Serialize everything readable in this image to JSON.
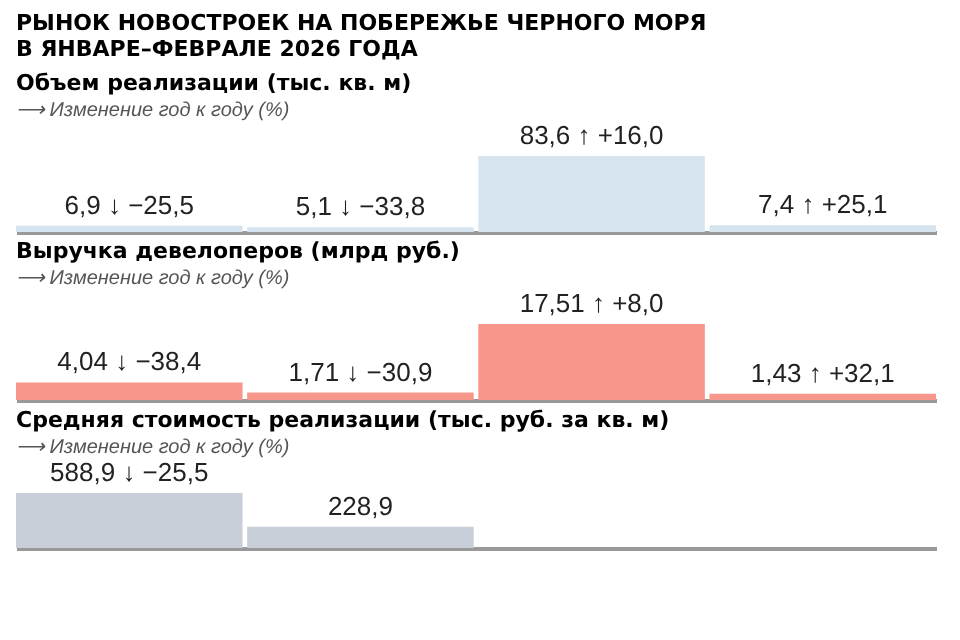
{
  "chart_data": [
    {
      "type": "bar",
      "title": "Объем реализации (тыс. кв. м)",
      "subtitle": "⟶ Изменение год к году (%)",
      "annotations": [
        "РЫНОК НОВОСТРОЕК НА ПОБЕРЕЖЬЕ ЧЕРНОГО МОРЯ",
        "В ЯНВАРЕ–ФЕВРАЛЕ 2026 ГОДА"
      ],
      "categories": [
        null,
        null,
        null,
        null
      ],
      "values": [
        6.9,
        5.1,
        83.6,
        7.4
      ],
      "color": "#d6e4f0",
      "ylim": [
        0,
        83.6
      ],
      "tick_labels": false,
      "value_labels": [
        "6,9 ↓ −25,5",
        "5,1 ↓ −33,8",
        "83,6 ↑ +16,0",
        "7,4 ↑ +25,1"
      ]
    },
    {
      "type": "bar",
      "title": "Выручка девелоперов (млрд руб.)",
      "subtitle": "⟶ Изменение год к году (%)",
      "categories": [
        null,
        null,
        null,
        null
      ],
      "values": [
        4.04,
        1.71,
        17.51,
        1.43
      ],
      "color": "#f7968a",
      "ylim": [
        0,
        17.51
      ],
      "tick_labels": false,
      "value_labels": [
        "4,04 ↓ −38,4",
        "1,71 ↓ −30,9",
        "17,51 ↑ +8,0",
        "1,43 ↑ +32,1"
      ]
    },
    {
      "type": "bar",
      "title": "Средняя стоимость реализации (тыс. руб. за кв. м)",
      "subtitle": "⟶ Изменение год к году (%)",
      "categories": [
        null,
        null,
        null,
        null
      ],
      "values": [
        588.9,
        228.9,
        null,
        null
      ],
      "color": "#c8cfd8",
      "ylim": [
        0,
        600
      ],
      "tick_labels": false,
      "value_labels": [
        "588,9 ↓ −25,5",
        "228,9",
        null,
        null
      ]
    }
  ]
}
